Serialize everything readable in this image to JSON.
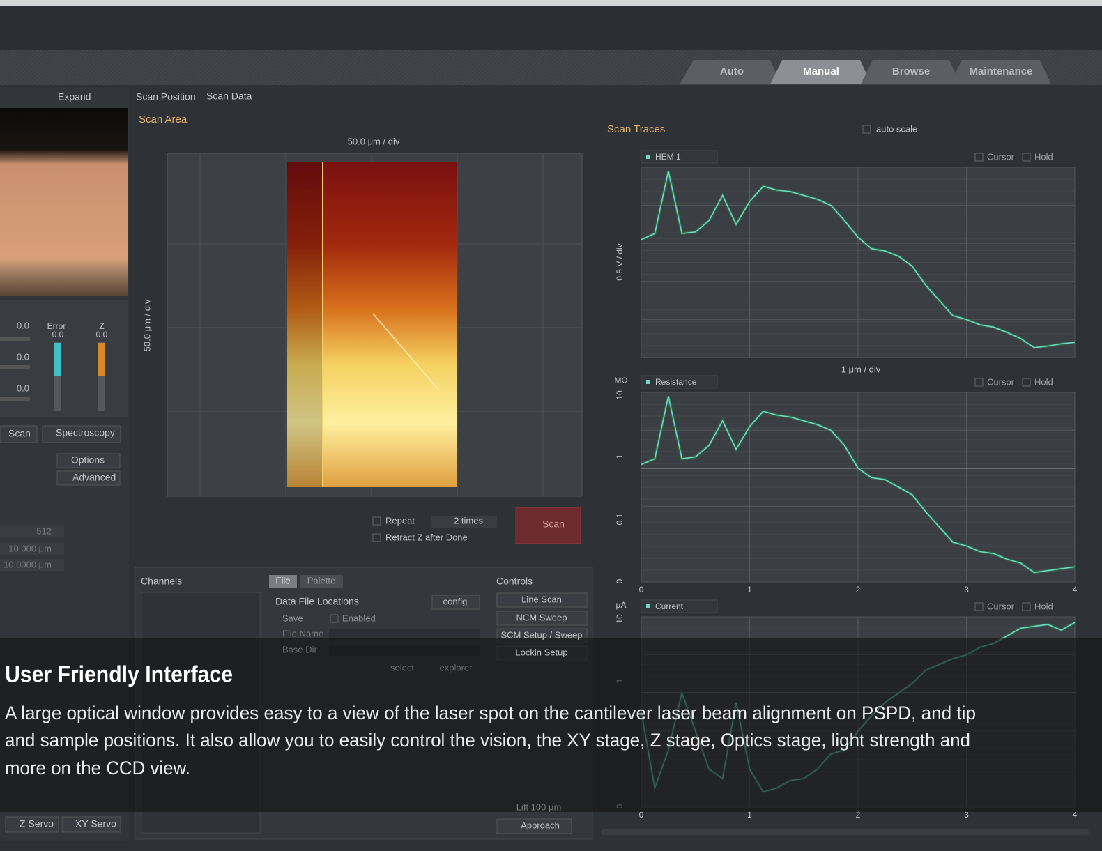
{
  "header": {
    "tabs": [
      "Auto",
      "Manual",
      "Browse",
      "Maintenance"
    ]
  },
  "left_panel": {
    "expand": "Expand",
    "readouts": [
      "0.0",
      "0.0",
      "0.0"
    ],
    "error_label": "Error",
    "error_value": "0.0",
    "z_label": "Z",
    "z_value": "0.0",
    "buttons": [
      "Scan",
      "Spectroscopy"
    ],
    "options": "Options",
    "advanced": "Advanced",
    "fields": [
      "512",
      "10.000 μm",
      "10.0000 μm"
    ],
    "servo_buttons": [
      "Z Servo",
      "XY Servo"
    ]
  },
  "scan_area": {
    "tabs": [
      "Scan Position",
      "Scan Data"
    ],
    "title": "Scan Area",
    "x_label": "50.0 μm / div",
    "y_label": "50.0 μm / div",
    "repeat": "Repeat",
    "repeat_times": "2 times",
    "retract": "Retract Z after Done",
    "scan_button": "Scan"
  },
  "channels": {
    "title": "Channels"
  },
  "file_panel": {
    "tabs": [
      "File",
      "Palette"
    ],
    "title": "Data File Locations",
    "config": "config",
    "save": "Save",
    "enabled": "Enabled",
    "file_name": "File Name",
    "base_dir": "Base Dir",
    "select": "select",
    "explorer": "explorer"
  },
  "controls": {
    "title": "Controls",
    "buttons": [
      "Line Scan",
      "NCM Sweep",
      "SCM Setup / Sweep",
      "Lockin Setup"
    ],
    "lift": "Lift 100 μm",
    "approach": "Approach"
  },
  "scan_traces": {
    "title": "Scan Traces",
    "auto_scale": "auto scale",
    "x_label": "1 μm / div",
    "cursor": "Cursor",
    "hold": "Hold"
  },
  "chart_data": [
    {
      "type": "line",
      "ylabel": "0.5 V / div",
      "xlim": [
        0,
        4
      ],
      "ylim": [
        0,
        2.5
      ],
      "x": [
        0,
        0.125,
        0.25,
        0.375,
        0.5,
        0.625,
        0.75,
        0.875,
        1,
        1.125,
        1.25,
        1.375,
        1.5,
        1.625,
        1.75,
        1.875,
        2,
        2.125,
        2.25,
        2.375,
        2.5,
        2.625,
        2.75,
        2.875,
        3,
        3.125,
        3.25,
        3.375,
        3.5,
        3.625,
        3.75,
        3.875,
        4
      ],
      "series": [
        {
          "name": "HEM 1",
          "color": "#6fd6c8",
          "values": [
            1.55,
            1.63,
            2.45,
            1.63,
            1.65,
            1.8,
            2.13,
            1.75,
            2.05,
            2.25,
            2.2,
            2.18,
            2.13,
            2.08,
            2,
            1.8,
            1.58,
            1.43,
            1.4,
            1.33,
            1.2,
            0.95,
            0.75,
            0.55,
            0.5,
            0.43,
            0.4,
            0.33,
            0.25,
            0.13,
            0.15,
            0.18,
            0.2
          ]
        }
      ]
    },
    {
      "type": "line",
      "unit": "MΩ",
      "y_labels": [
        "10",
        "1",
        "0.1",
        "0"
      ],
      "xlim": [
        0,
        4
      ],
      "xticks": [
        0,
        1,
        2,
        3,
        4
      ],
      "ylim": [
        0,
        1
      ],
      "x": [
        0,
        0.125,
        0.25,
        0.375,
        0.5,
        0.625,
        0.75,
        0.875,
        1,
        1.125,
        1.25,
        1.375,
        1.5,
        1.625,
        1.75,
        1.875,
        2,
        2.125,
        2.25,
        2.375,
        2.5,
        2.625,
        2.75,
        2.875,
        3,
        3.125,
        3.25,
        3.375,
        3.5,
        3.625,
        3.75,
        3.875,
        4
      ],
      "series": [
        {
          "name": "Resistance",
          "color": "#6fd6c8",
          "values": [
            0.62,
            0.65,
            0.98,
            0.65,
            0.66,
            0.72,
            0.85,
            0.7,
            0.82,
            0.9,
            0.88,
            0.87,
            0.85,
            0.83,
            0.8,
            0.72,
            0.6,
            0.55,
            0.54,
            0.5,
            0.46,
            0.37,
            0.29,
            0.21,
            0.19,
            0.16,
            0.15,
            0.12,
            0.1,
            0.05,
            0.06,
            0.07,
            0.08
          ]
        }
      ]
    },
    {
      "type": "line",
      "unit": "μA",
      "y_labels": [
        "10",
        "1",
        "0"
      ],
      "xlim": [
        0,
        4
      ],
      "xticks": [
        0,
        1,
        2,
        3,
        4
      ],
      "ylim": [
        0,
        1
      ],
      "x": [
        0,
        0.125,
        0.25,
        0.375,
        0.5,
        0.625,
        0.75,
        0.875,
        1,
        1.125,
        1.25,
        1.375,
        1.5,
        1.625,
        1.75,
        1.875,
        2,
        2.125,
        2.25,
        2.375,
        2.5,
        2.625,
        2.75,
        2.875,
        3,
        3.125,
        3.25,
        3.375,
        3.5,
        3.625,
        3.75,
        3.875,
        4
      ],
      "series": [
        {
          "name": "Current",
          "color": "#6fd6c8",
          "values": [
            0.5,
            0.1,
            0.3,
            0.6,
            0.4,
            0.2,
            0.15,
            0.55,
            0.2,
            0.08,
            0.1,
            0.14,
            0.15,
            0.2,
            0.28,
            0.3,
            0.4,
            0.48,
            0.55,
            0.6,
            0.65,
            0.72,
            0.75,
            0.78,
            0.8,
            0.84,
            0.86,
            0.9,
            0.94,
            0.95,
            0.96,
            0.93,
            0.97
          ]
        }
      ]
    }
  ],
  "overlay": {
    "title": "User Friendly Interface",
    "lines": [
      "A large optical window provides easy to a view of the laser spot on the cantilever laser beam alignment on PSPD, and tip",
      "and sample positions. It also allow you to easily control the vision, the XY stage, Z stage, Optics stage, light strength and",
      "more on the CCD view."
    ]
  }
}
